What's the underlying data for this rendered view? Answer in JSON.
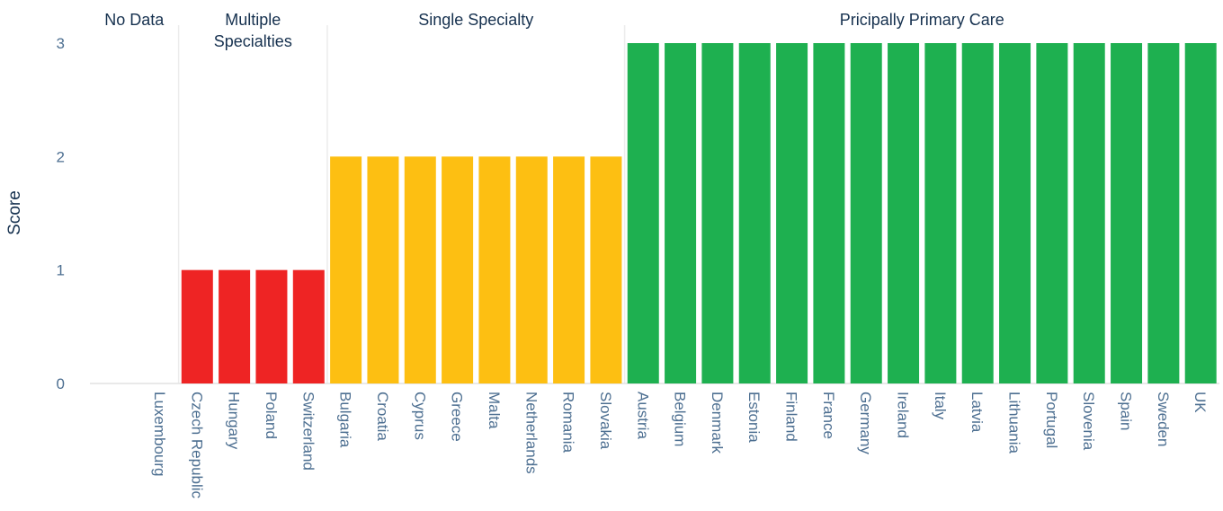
{
  "chart_data": {
    "type": "bar",
    "y_label": "Score",
    "categories": [
      "Luxembourg",
      "Czech Republic",
      "Hungary",
      "Poland",
      "Switzerland",
      "Bulgaria",
      "Croatia",
      "Cyprus",
      "Greece",
      "Malta",
      "Netherlands",
      "Romania",
      "Slovakia",
      "Austria",
      "Belgium",
      "Denmark",
      "Estonia",
      "Finland",
      "France",
      "Germany",
      "Ireland",
      "Italy",
      "Latvia",
      "Lithuania",
      "Portugal",
      "Slovenia",
      "Spain",
      "Sweden",
      "UK"
    ],
    "values": [
      0,
      1,
      1,
      1,
      1,
      2,
      2,
      2,
      2,
      2,
      2,
      2,
      2,
      3,
      3,
      3,
      3,
      3,
      3,
      3,
      3,
      3,
      3,
      3,
      3,
      3,
      3,
      3,
      3
    ],
    "colors": [
      "#ee2424",
      "#ee2424",
      "#ee2424",
      "#ee2424",
      "#ee2424",
      "#fdbf12",
      "#fdbf12",
      "#fdbf12",
      "#fdbf12",
      "#fdbf12",
      "#fdbf12",
      "#fdbf12",
      "#fdbf12",
      "#1eb050",
      "#1eb050",
      "#1eb050",
      "#1eb050",
      "#1eb050",
      "#1eb050",
      "#1eb050",
      "#1eb050",
      "#1eb050",
      "#1eb050",
      "#1eb050",
      "#1eb050",
      "#1eb050",
      "#1eb050",
      "#1eb050",
      "#1eb050"
    ],
    "groups": [
      [
        "No Data"
      ],
      [
        "Multiple",
        "Specialties"
      ],
      [
        "Single Specialty"
      ],
      [
        "Pricipally Primary Care"
      ]
    ],
    "ylim": [
      0,
      3
    ],
    "yticks": [
      0,
      1,
      2,
      3
    ]
  }
}
